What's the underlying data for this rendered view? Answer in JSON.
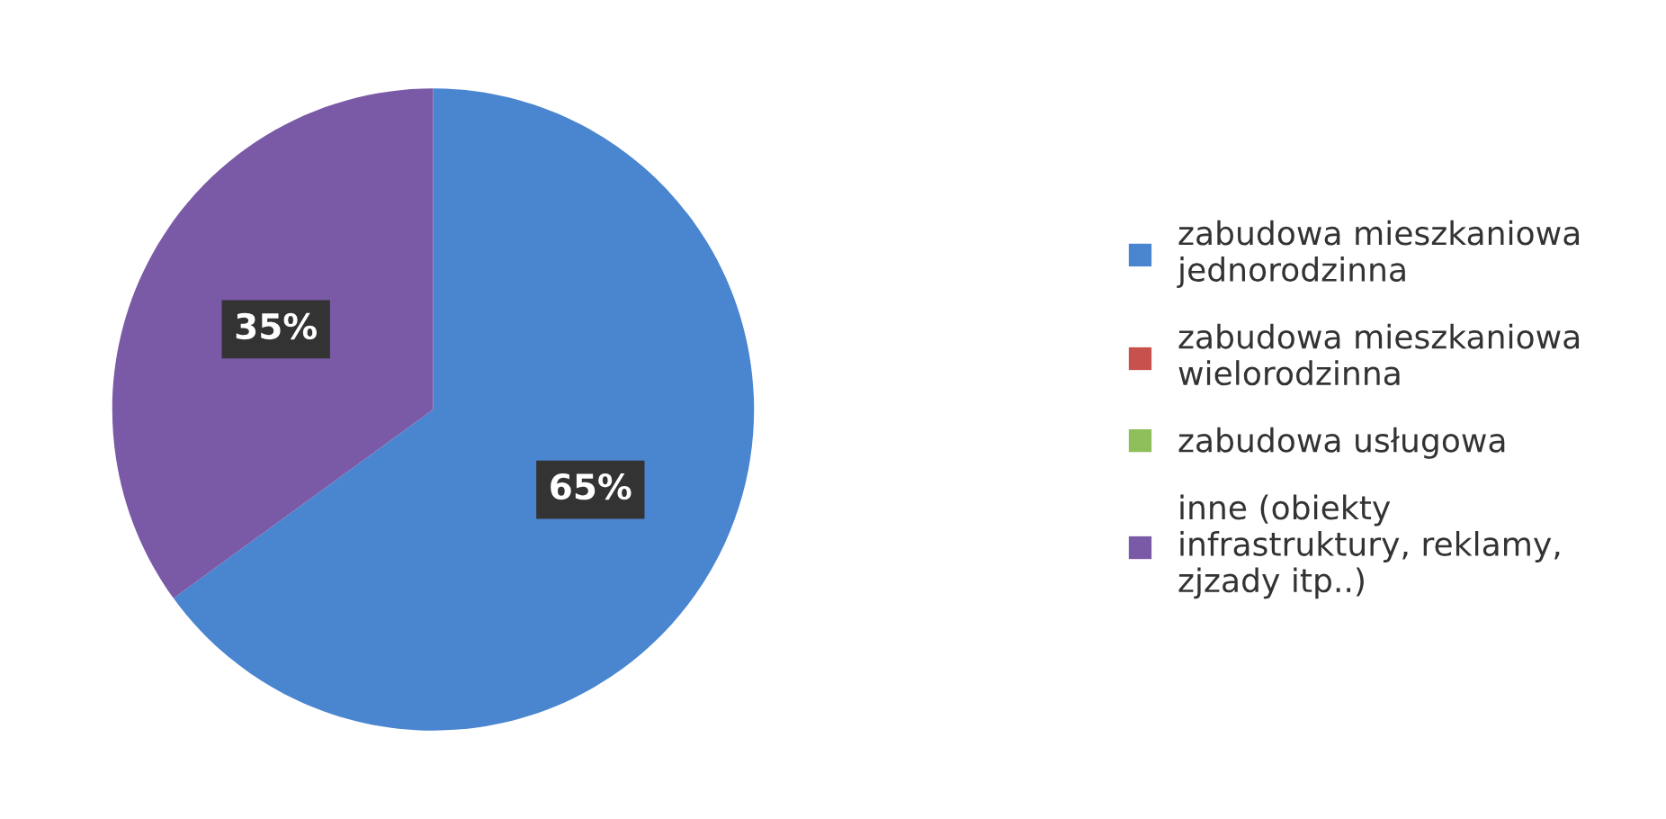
{
  "chart_data": {
    "type": "pie",
    "categories": [
      "zabudowa mieszkaniowa jednorodzinna",
      "zabudowa mieszkaniowa wielorodzinna",
      "zabudowa usługowa",
      "inne (obiekty infrastruktury, reklamy, zjzady itp..)"
    ],
    "values": [
      65,
      0,
      0,
      35
    ],
    "colors": [
      "#4a85d0",
      "#c8504d",
      "#8fbf5a",
      "#7a5aa6"
    ],
    "value_labels": [
      "65%",
      null,
      null,
      "35%"
    ],
    "legend": "right"
  }
}
